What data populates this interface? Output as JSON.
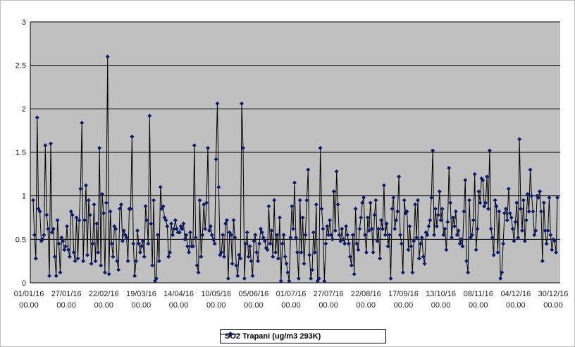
{
  "colors": {
    "plot_bg": "#c0c0c0",
    "series": "#0a1a6e",
    "grid": "#000000"
  },
  "chart_data": {
    "type": "line",
    "title": "",
    "xlabel": "",
    "ylabel": "",
    "ylim": [
      0,
      3
    ],
    "y_ticks": [
      "0",
      "0.5",
      "1",
      "1.5",
      "2",
      "2.5",
      "3"
    ],
    "x_tick_labels": [
      "01/01/16 00.00",
      "27/01/16 00.00",
      "22/02/16 00.00",
      "19/03/16 00.00",
      "14/04/16 00.00",
      "10/05/16 00.00",
      "05/06/16 00.00",
      "01/07/16 00.00",
      "27/07/16 00.00",
      "22/08/16 00.00",
      "17/09/16 00.00",
      "13/10/16 00.00",
      "08/11/16 00.00",
      "04/12/16 00.00",
      "30/12/16 00.00"
    ],
    "x_start": "2016-01-01",
    "x_end": "2016-12-30",
    "grid": "horizontal",
    "legend_position": "bottom",
    "series": [
      {
        "name": "SO2 Trapani (ug/m3 293K)",
        "marker": "diamond",
        "values": [
          0.95,
          0.55,
          0.28,
          1.9,
          0.85,
          0.82,
          0.48,
          0.5,
          0.55,
          1.58,
          0.78,
          0.62,
          0.08,
          1.6,
          0.58,
          0.62,
          0.3,
          0.08,
          0.72,
          0.45,
          0.12,
          0.52,
          0.48,
          0.38,
          0.42,
          0.65,
          0.38,
          0.3,
          0.82,
          0.78,
          0.35,
          0.25,
          0.75,
          0.28,
          0.72,
          1.08,
          1.84,
          0.25,
          0.72,
          1.12,
          0.32,
          0.95,
          0.78,
          0.22,
          0.45,
          0.9,
          0.25,
          0.68,
          0.35,
          1.55,
          0.2,
          1.02,
          0.8,
          0.12,
          0.92,
          2.6,
          0.1,
          0.82,
          0.45,
          0.3,
          0.65,
          0.62,
          0.25,
          0.15,
          0.85,
          0.9,
          0.48,
          0.6,
          0.55,
          0.52,
          0.25,
          0.85,
          0.85,
          1.68,
          0.45,
          0.08,
          0.25,
          0.6,
          0.45,
          0.35,
          0.42,
          0.48,
          0.3,
          0.88,
          0.72,
          0.45,
          1.92,
          0.68,
          0.2,
          0.95,
          0.02,
          0.05,
          0.55,
          0.25,
          1.1,
          0.85,
          0.88,
          0.75,
          0.72,
          0.65,
          0.3,
          0.35,
          0.68,
          0.55,
          0.62,
          0.72,
          0.62,
          0.58,
          0.58,
          0.65,
          0.62,
          0.68,
          0.5,
          0.55,
          0.42,
          0.35,
          0.58,
          0.42,
          0.42,
          1.58,
          0.52,
          0.2,
          0.12,
          0.95,
          0.3,
          0.55,
          0.9,
          0.62,
          0.92,
          1.55,
          0.6,
          0.65,
          0.55,
          0.5,
          0.45,
          1.42,
          2.06,
          1.1,
          0.32,
          0.35,
          0.55,
          0.3,
          0.68,
          0.72,
          0.05,
          0.58,
          0.55,
          0.22,
          0.72,
          0.52,
          0.2,
          0.08,
          0.32,
          0.28,
          2.06,
          1.55,
          0.05,
          0.45,
          0.58,
          0.3,
          0.42,
          0.25,
          0.08,
          0.48,
          0.55,
          0.35,
          0.25,
          0.45,
          0.62,
          0.58,
          0.52,
          0.48,
          0.4,
          0.38,
          0.88,
          0.45,
          0.6,
          0.3,
          0.95,
          0.35,
          0.55,
          0.28,
          0.75,
          0.02,
          0.45,
          0.55,
          0.3,
          0.22,
          0.12,
          0.02,
          0.52,
          0.88,
          0.62,
          1.15,
          0.52,
          0.35,
          0.05,
          0.95,
          0.35,
          0.75,
          0.22,
          0.55,
          0.95,
          1.3,
          0.32,
          0.05,
          0.15,
          0.58,
          0.35,
          0.9,
          0.02,
          0.05,
          1.55,
          0.85,
          0.62,
          0.02,
          0.45,
          0.65,
          0.55,
          0.72,
          0.55,
          0.5,
          1.05,
          0.6,
          1.28,
          0.9,
          0.55,
          0.48,
          0.62,
          0.5,
          0.45,
          0.65,
          0.55,
          0.45,
          0.3,
          0.2,
          0.55,
          0.1,
          0.85,
          0.45,
          0.38,
          0.62,
          0.75,
          0.92,
          0.98,
          0.55,
          0.35,
          0.75,
          0.6,
          0.92,
          0.62,
          0.35,
          0.78,
          0.95,
          0.48,
          0.62,
          0.28,
          0.72,
          0.62,
          1.12,
          0.55,
          0.68,
          0.42,
          0.55,
          0.05,
          0.85,
          0.98,
          0.62,
          0.72,
          0.82,
          1.22,
          0.55,
          0.45,
          0.12,
          0.95,
          0.8,
          0.82,
          0.38,
          0.65,
          0.42,
          0.12,
          0.48,
          0.9,
          0.52,
          0.95,
          0.28,
          0.45,
          0.52,
          0.3,
          0.22,
          0.58,
          0.55,
          0.65,
          0.72,
          0.98,
          1.52,
          0.55,
          0.85,
          0.65,
          0.78,
          1.05,
          0.72,
          0.85,
          0.55,
          0.62,
          0.38,
          0.7,
          1.32,
          0.92,
          0.52,
          0.75,
          0.65,
          0.82,
          0.55,
          0.6,
          0.45,
          0.5,
          0.42,
          0.82,
          1.18,
          0.25,
          0.12,
          0.95,
          0.52,
          0.55,
          0.72,
          1.25,
          0.38,
          0.62,
          1.05,
          0.92,
          1.2,
          1.18,
          0.88,
          0.92,
          1.22,
          0.85,
          1.52,
          0.62,
          0.52,
          0.32,
          0.95,
          0.88,
          0.35,
          0.82,
          0.05,
          0.12,
          0.45,
          0.8,
          0.85,
          0.72,
          1.08,
          0.8,
          0.75,
          0.62,
          0.48,
          0.7,
          0.92,
          0.52,
          1.65,
          0.85,
          0.6,
          0.95,
          0.48,
          0.72,
          1.02,
          0.82,
          1.3,
          1.0,
          0.82,
          0.55,
          0.6,
          1.0,
          0.98,
          1.05,
          0.82,
          0.25,
          0.92,
          0.6,
          0.45,
          0.6,
          0.98,
          0.55,
          0.38,
          0.5,
          0.48,
          0.35,
          0.98
        ]
      }
    ]
  }
}
